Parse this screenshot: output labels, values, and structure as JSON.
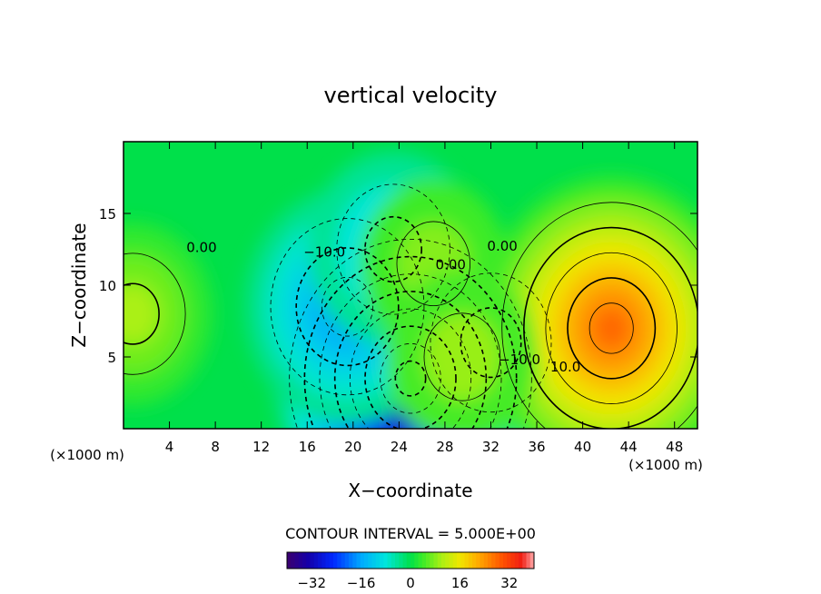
{
  "chart_data": {
    "type": "heatmap",
    "title": "vertical velocity",
    "xlabel": "X−coordinate",
    "ylabel": "Z−coordinate",
    "x_unit": "(×1000 m)",
    "xlim": [
      0,
      50
    ],
    "ylim": [
      0,
      20
    ],
    "x_ticks": [
      4,
      8,
      12,
      16,
      20,
      24,
      28,
      32,
      36,
      40,
      44,
      48
    ],
    "y_ticks": [
      5,
      10,
      15
    ],
    "contour_interval_label": "CONTOUR INTERVAL = 5.000E+00",
    "contour_labels": [
      {
        "text": "0.00",
        "x": 6.8,
        "y": 12.3
      },
      {
        "text": "−10.0",
        "x": 17.5,
        "y": 12.0
      },
      {
        "text": "0.00",
        "x": 28.5,
        "y": 11.1
      },
      {
        "text": "0.00",
        "x": 33.0,
        "y": 12.4
      },
      {
        "text": "−10.0",
        "x": 34.5,
        "y": 4.5
      },
      {
        "text": "10.0",
        "x": 38.5,
        "y": 4.0
      }
    ],
    "color_scale": {
      "min": -40,
      "max": 40,
      "ticks": [
        -32,
        -16,
        0,
        16,
        32
      ],
      "tick_labels": [
        "−32",
        "−16",
        "0",
        "16",
        "32"
      ]
    },
    "field_features": [
      {
        "kind": "min",
        "x": 25.0,
        "y": 3.5,
        "value": -40
      },
      {
        "kind": "min",
        "x": 19.5,
        "y": 8.5,
        "value": -18
      },
      {
        "kind": "min",
        "x": 23.5,
        "y": 12.5,
        "value": -12
      },
      {
        "kind": "min",
        "x": 32.0,
        "y": 6.0,
        "value": -14
      },
      {
        "kind": "max",
        "x": 42.5,
        "y": 7.0,
        "value": 28
      },
      {
        "kind": "max",
        "x": 27.0,
        "y": 11.5,
        "value": 8
      },
      {
        "kind": "max",
        "x": 29.5,
        "y": 5.0,
        "value": 9
      },
      {
        "kind": "max",
        "x": 0.8,
        "y": 8.0,
        "value": 10
      }
    ]
  },
  "colors": {
    "background": "#ffffff",
    "field_zero": "#00e04a",
    "axis": "#000000"
  }
}
